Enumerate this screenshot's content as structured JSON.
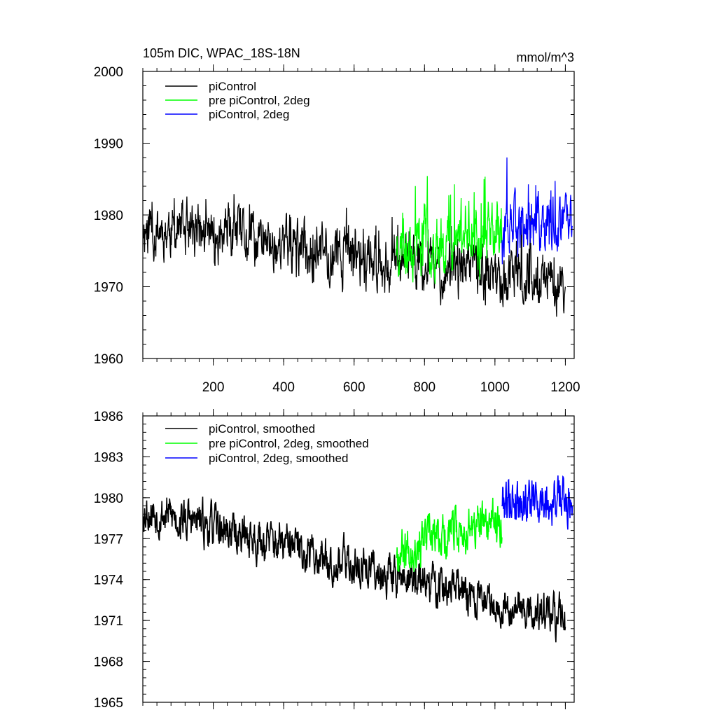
{
  "chart_data": [
    {
      "type": "line",
      "title": "105m DIC, WPAC_18S-18N",
      "units": "mmol/m^3",
      "xlabel": "",
      "ylabel": "",
      "xlim": [
        0,
        1225
      ],
      "ylim": [
        1960,
        2000
      ],
      "x_ticks": [
        200,
        400,
        600,
        800,
        1000,
        1200
      ],
      "x_tick_labels": [
        "200",
        "400",
        "600",
        "800",
        "1000",
        "1200"
      ],
      "y_ticks": [
        1960,
        1970,
        1980,
        1990,
        2000
      ],
      "y_tick_labels": [
        "1960",
        "1970",
        "1980",
        "1990",
        "2000"
      ],
      "legend_position": "top-left",
      "series": [
        {
          "name": "piControl",
          "color": "#000000",
          "x_start": 1,
          "x_end": 1200,
          "start_level": 1978.5,
          "end_level": 1970,
          "spread": 3.2,
          "spikes": 6,
          "seed": 11
        },
        {
          "name": "pre piControl, 2deg",
          "color": "#00ff00",
          "x_start": 720,
          "x_end": 1020,
          "start_level": 1976,
          "end_level": 1977.5,
          "spread": 3.6,
          "spikes": 9,
          "seed": 23
        },
        {
          "name": "piControl, 2deg",
          "color": "#0000ff",
          "x_start": 1020,
          "x_end": 1220,
          "start_level": 1978,
          "end_level": 1978.5,
          "spread": 3.4,
          "spikes": 9,
          "seed": 37
        }
      ]
    },
    {
      "type": "line",
      "title": "",
      "xlabel": "",
      "ylabel": "",
      "xlim": [
        0,
        1225
      ],
      "ylim": [
        1965,
        1986
      ],
      "x_ticks": [
        200,
        400,
        600,
        800,
        1000,
        1200
      ],
      "y_ticks": [
        1965,
        1968,
        1971,
        1974,
        1977,
        1980,
        1983,
        1986
      ],
      "y_tick_labels": [
        "1965",
        "1968",
        "1971",
        "1974",
        "1977",
        "1980",
        "1983",
        "1986"
      ],
      "legend_position": "top-left",
      "series": [
        {
          "name": "piControl, smoothed",
          "color": "#000000",
          "x_start": 1,
          "x_end": 1200,
          "start_level": 1979.2,
          "end_level": 1971,
          "spread": 1.3,
          "spikes": 0,
          "seed": 53
        },
        {
          "name": "pre piControl, 2deg, smoothed",
          "color": "#00ff00",
          "x_start": 720,
          "x_end": 1020,
          "start_level": 1976.3,
          "end_level": 1978.3,
          "spread": 1.4,
          "spikes": 0,
          "seed": 67
        },
        {
          "name": "piControl, 2deg, smoothed",
          "color": "#0000ff",
          "x_start": 1020,
          "x_end": 1220,
          "start_level": 1980,
          "end_level": 1979.8,
          "spread": 1.5,
          "spikes": 0,
          "seed": 79
        }
      ]
    }
  ]
}
